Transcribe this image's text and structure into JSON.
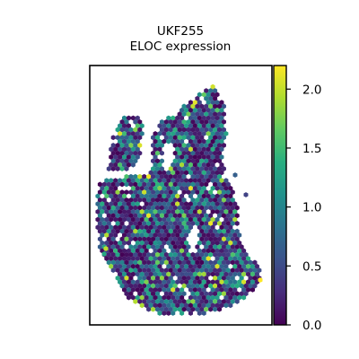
{
  "chart_data": {
    "type": "scatter",
    "title": "UKF255\nELOC expression",
    "title_lines": [
      "UKF255",
      "ELOC expression"
    ],
    "marker": "hexagon",
    "colormap": "viridis",
    "color_range": [
      0.0,
      2.2
    ],
    "colorbar": {
      "ticks": [
        0.0,
        0.5,
        1.0,
        1.5,
        2.0
      ],
      "tick_labels": [
        "0.0",
        "0.5",
        "1.0",
        "1.5",
        "2.0"
      ]
    },
    "axes_visible": false,
    "grid": false,
    "legend": "colorbar-right"
  }
}
